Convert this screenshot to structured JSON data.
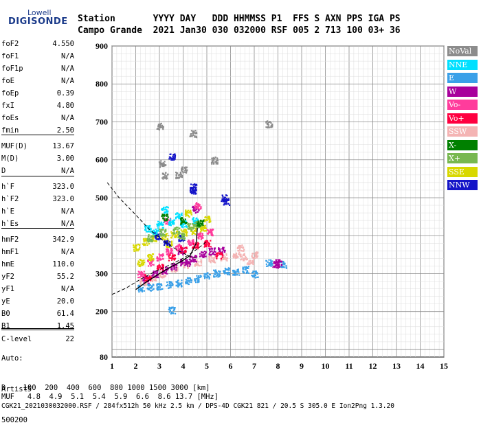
{
  "logo": {
    "line1": "Lowell",
    "line2": "DIGISONDE"
  },
  "header": {
    "row1": "Station       YYYY DAY   DDD HHMMSS P1  FFS S AXN PPS IGA PS",
    "row2": "Campo Grande  2021 Jan30 030 032000 RSF 005 2 713 100 03+ 36"
  },
  "params": [
    {
      "name": "foF2",
      "value": "4.550"
    },
    {
      "name": "foF1",
      "value": "N/A"
    },
    {
      "name": "foF1p",
      "value": "N/A"
    },
    {
      "name": "foE",
      "value": "N/A"
    },
    {
      "name": "foEp",
      "value": "0.39"
    },
    {
      "name": "fxI",
      "value": "4.80"
    },
    {
      "name": "foEs",
      "value": "N/A"
    },
    {
      "name": "fmin",
      "value": "2.50"
    },
    {
      "name": "MUF(D)",
      "value": "13.67"
    },
    {
      "name": "M(D)",
      "value": "3.00"
    },
    {
      "name": "D",
      "value": "N/A"
    },
    {
      "name": "h`F",
      "value": "323.0"
    },
    {
      "name": "h`F2",
      "value": "323.0"
    },
    {
      "name": "h`E",
      "value": "N/A"
    },
    {
      "name": "h`Es",
      "value": "N/A"
    },
    {
      "name": "hmF2",
      "value": "342.9"
    },
    {
      "name": "hmF1",
      "value": "N/A"
    },
    {
      "name": "hmE",
      "value": "110.0"
    },
    {
      "name": "yF2",
      "value": "55.2"
    },
    {
      "name": "yF1",
      "value": "N/A"
    },
    {
      "name": "yE",
      "value": "20.0"
    },
    {
      "name": "B0",
      "value": "61.4"
    },
    {
      "name": "B1",
      "value": "1.45"
    },
    {
      "name": "C-level",
      "value": "22"
    }
  ],
  "auto": {
    "line1": "Auto:",
    "line2": "Artist5",
    "line3": "500200"
  },
  "legend": [
    {
      "label": "NoVal",
      "color": "#8c8c8c"
    },
    {
      "label": "NNE",
      "color": "#00e0ff"
    },
    {
      "label": "E",
      "color": "#3aa0e8"
    },
    {
      "label": "W",
      "color": "#a8009c"
    },
    {
      "label": "Vo-",
      "color": "#ff3c9c"
    },
    {
      "label": "Vo+",
      "color": "#ff0040"
    },
    {
      "label": "SSW",
      "color": "#f4b4b4"
    },
    {
      "label": "X-",
      "color": "#008000"
    },
    {
      "label": "X+",
      "color": "#78b850"
    },
    {
      "label": "SSE",
      "color": "#d8d800"
    },
    {
      "label": "NNW",
      "color": "#1414c8"
    }
  ],
  "footer": {
    "d_row": "D    100  200  400  600  800 1000 1500 3000 [km]",
    "muf_row": "MUF   4.8  4.9  5.1  5.4  5.9  6.6  8.6 13.7 [MHz]",
    "info_row": "CGK21_2021030032000.RSF / 284fx512h 50 kHz 2.5 km / DPS-4D CGK21 821 / 20.5 S 305.0 E Ion2Png 1.3.20"
  },
  "chart_data": {
    "type": "scatter",
    "xlabel": "",
    "ylabel": "",
    "xlim": [
      1,
      15
    ],
    "ylim": [
      80,
      900
    ],
    "x_ticks": [
      1,
      2,
      3,
      4,
      5,
      6,
      7,
      8,
      9,
      10,
      11,
      12,
      13,
      14,
      15
    ],
    "y_ticks": [
      80,
      200,
      300,
      400,
      500,
      600,
      700,
      800,
      900
    ],
    "grid": true,
    "legend_position": "right",
    "series": [
      {
        "name": "E",
        "color": "#3aa0e8",
        "points": [
          [
            2.2,
            262
          ],
          [
            2.6,
            265
          ],
          [
            3.0,
            268
          ],
          [
            3.4,
            272
          ],
          [
            3.8,
            276
          ],
          [
            4.2,
            282
          ],
          [
            4.6,
            288
          ],
          [
            5.0,
            296
          ],
          [
            5.4,
            302
          ],
          [
            5.8,
            308
          ],
          [
            6.2,
            305
          ],
          [
            6.6,
            312
          ],
          [
            7.0,
            300
          ],
          [
            7.6,
            330
          ],
          [
            8.2,
            325
          ],
          [
            3.5,
            205
          ]
        ]
      },
      {
        "name": "SSW",
        "color": "#f4b4b4",
        "points": [
          [
            2.3,
            280
          ],
          [
            2.7,
            290
          ],
          [
            3.1,
            300
          ],
          [
            3.6,
            315
          ],
          [
            4.1,
            325
          ],
          [
            4.6,
            330
          ],
          [
            5.2,
            340
          ],
          [
            5.7,
            345
          ],
          [
            6.2,
            350
          ],
          [
            6.5,
            345
          ],
          [
            6.8,
            335
          ],
          [
            7.0,
            350
          ],
          [
            6.4,
            370
          ]
        ]
      },
      {
        "name": "W",
        "color": "#a8009c",
        "points": [
          [
            2.4,
            285
          ],
          [
            2.8,
            300
          ],
          [
            3.2,
            310
          ],
          [
            3.6,
            320
          ],
          [
            4.0,
            332
          ],
          [
            4.4,
            342
          ],
          [
            4.8,
            352
          ],
          [
            5.2,
            360
          ],
          [
            5.6,
            362
          ],
          [
            4.5,
            470
          ],
          [
            4.2,
            330
          ],
          [
            3.9,
            360
          ],
          [
            8.0,
            330
          ],
          [
            7.9,
            325
          ]
        ]
      },
      {
        "name": "Vo-",
        "color": "#ff3c9c",
        "points": [
          [
            2.2,
            300
          ],
          [
            2.6,
            330
          ],
          [
            3.0,
            345
          ],
          [
            3.4,
            360
          ],
          [
            3.8,
            370
          ],
          [
            4.3,
            385
          ],
          [
            4.7,
            400
          ],
          [
            5.1,
            410
          ],
          [
            3.3,
            440
          ],
          [
            4.6,
            480
          ]
        ]
      },
      {
        "name": "Vo+",
        "color": "#ff0040",
        "points": [
          [
            2.5,
            290
          ],
          [
            3.0,
            320
          ],
          [
            3.5,
            345
          ],
          [
            4.0,
            365
          ],
          [
            4.5,
            375
          ],
          [
            5.0,
            380
          ],
          [
            5.5,
            350
          ]
        ]
      },
      {
        "name": "SSE",
        "color": "#d8d800",
        "points": [
          [
            2.0,
            370
          ],
          [
            2.4,
            385
          ],
          [
            2.8,
            395
          ],
          [
            3.2,
            400
          ],
          [
            3.6,
            405
          ],
          [
            4.0,
            410
          ],
          [
            4.4,
            415
          ],
          [
            4.8,
            420
          ],
          [
            2.2,
            330
          ],
          [
            2.6,
            345
          ],
          [
            3.4,
            380
          ],
          [
            4.2,
            460
          ],
          [
            5.0,
            445
          ]
        ]
      },
      {
        "name": "NNE",
        "color": "#00e0ff",
        "points": [
          [
            2.5,
            420
          ],
          [
            3.0,
            430
          ],
          [
            3.5,
            438
          ],
          [
            4.0,
            432
          ],
          [
            4.5,
            440
          ],
          [
            3.2,
            470
          ],
          [
            3.8,
            455
          ],
          [
            2.8,
            410
          ]
        ]
      },
      {
        "name": "NNW",
        "color": "#1414c8",
        "points": [
          [
            2.9,
            400
          ],
          [
            3.3,
            380
          ],
          [
            3.9,
            395
          ],
          [
            4.4,
            530
          ],
          [
            5.8,
            490
          ],
          [
            5.7,
            500
          ],
          [
            3.5,
            610
          ],
          [
            4.4,
            520
          ]
        ]
      },
      {
        "name": "X+",
        "color": "#78b850",
        "points": [
          [
            2.6,
            395
          ],
          [
            3.1,
            410
          ],
          [
            3.7,
            415
          ],
          [
            4.3,
            425
          ],
          [
            4.6,
            430
          ],
          [
            3.9,
            400
          ]
        ]
      },
      {
        "name": "X-",
        "color": "#008000",
        "points": [
          [
            3.2,
            450
          ],
          [
            4.0,
            440
          ],
          [
            4.7,
            435
          ]
        ]
      },
      {
        "name": "NoVal",
        "color": "#8c8c8c",
        "points": [
          [
            3.0,
            690
          ],
          [
            3.1,
            590
          ],
          [
            3.2,
            560
          ],
          [
            3.8,
            560
          ],
          [
            4.0,
            575
          ],
          [
            4.4,
            670
          ],
          [
            7.6,
            695
          ],
          [
            5.3,
            600
          ]
        ]
      }
    ],
    "profile": {
      "points": [
        [
          2.0,
          258
        ],
        [
          2.5,
          280
        ],
        [
          3.0,
          300
        ],
        [
          3.5,
          318
        ],
        [
          4.0,
          335
        ],
        [
          4.3,
          348
        ],
        [
          4.55,
          380
        ],
        [
          4.6,
          420
        ]
      ]
    },
    "dashed_curves": [
      {
        "points": [
          [
            0.8,
            540
          ],
          [
            1.3,
            500
          ],
          [
            2.0,
            455
          ],
          [
            2.6,
            415
          ],
          [
            3.2,
            385
          ],
          [
            3.8,
            360
          ],
          [
            4.3,
            345
          ],
          [
            4.6,
            340
          ]
        ]
      },
      {
        "points": [
          [
            1.0,
            245
          ],
          [
            1.6,
            262
          ],
          [
            2.2,
            285
          ],
          [
            2.8,
            305
          ],
          [
            3.4,
            322
          ],
          [
            4.0,
            340
          ],
          [
            4.6,
            365
          ],
          [
            5.0,
            385
          ]
        ]
      }
    ]
  }
}
